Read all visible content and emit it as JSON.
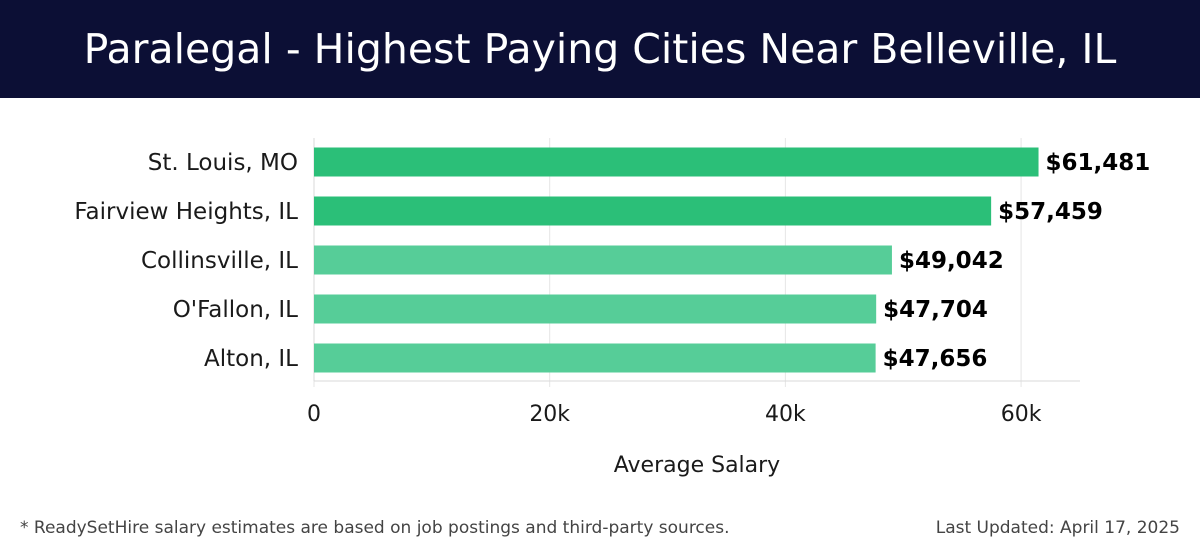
{
  "header": {
    "title": "Paralegal - Highest Paying Cities Near Belleville, IL"
  },
  "footer": {
    "note": "* ReadySetHire salary estimates are based on job postings and third-party sources.",
    "updated": "Last Updated: April 17, 2025"
  },
  "colors": {
    "header_bg": "#0c0f35",
    "bar_dark": "#2bbf78",
    "bar_light": "#56cd98"
  },
  "chart_data": {
    "type": "bar",
    "orientation": "horizontal",
    "categories": [
      "St. Louis, MO",
      "Fairview Heights, IL",
      "Collinsville, IL",
      "O'Fallon, IL",
      "Alton, IL"
    ],
    "values": [
      61481,
      57459,
      49042,
      47704,
      47656
    ],
    "value_labels": [
      "$61,481",
      "$57,459",
      "$49,042",
      "$47,704",
      "$47,656"
    ],
    "xlabel": "Average Salary",
    "ylabel": "",
    "xlim": [
      0,
      65000
    ],
    "xticks": [
      0,
      20000,
      40000,
      60000
    ],
    "xtick_labels": [
      "0",
      "20k",
      "40k",
      "60k"
    ],
    "grid": "vertical"
  }
}
